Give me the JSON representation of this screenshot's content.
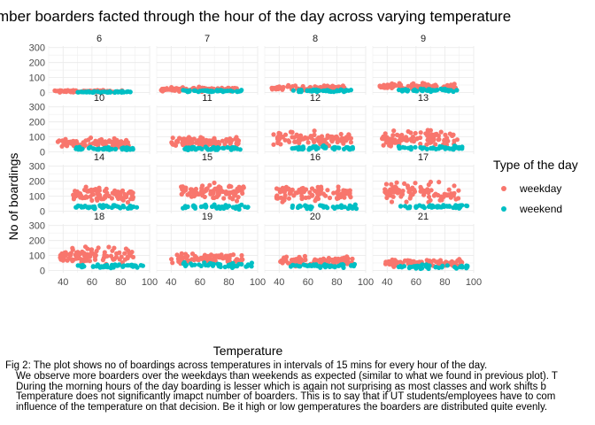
{
  "chart_data": {
    "type": "scatter",
    "title": "mber boarders facted through the hour of the day across varying temperature",
    "xlabel": "Temperature",
    "ylabel": "No of boardings",
    "xlim": [
      30,
      100
    ],
    "ylim": [
      -15,
      310
    ],
    "x_ticks": [
      "40",
      "60",
      "80",
      "100"
    ],
    "y_ticks": [
      "0",
      "100",
      "200",
      "300"
    ],
    "legend": {
      "title": "Type of the day",
      "position": "right",
      "entries": [
        {
          "label": "weekday",
          "color": "#F8766D"
        },
        {
          "label": "weekend",
          "color": "#00BFC4"
        }
      ]
    },
    "grid": true,
    "facets": [
      {
        "hour": "6",
        "weekday": {
          "x_range": [
            33,
            82
          ],
          "y_center": 8,
          "y_spread": 6
        },
        "weekend": {
          "x_range": [
            50,
            88
          ],
          "y_center": 4,
          "y_spread": 4
        }
      },
      {
        "hour": "7",
        "weekday": {
          "x_range": [
            33,
            86
          ],
          "y_center": 22,
          "y_spread": 12
        },
        "weekend": {
          "x_range": [
            48,
            90
          ],
          "y_center": 10,
          "y_spread": 6
        }
      },
      {
        "hour": "8",
        "weekday": {
          "x_range": [
            33,
            86
          ],
          "y_center": 30,
          "y_spread": 15
        },
        "weekend": {
          "x_range": [
            48,
            90
          ],
          "y_center": 12,
          "y_spread": 6
        }
      },
      {
        "hour": "9",
        "weekday": {
          "x_range": [
            34,
            88
          ],
          "y_center": 40,
          "y_spread": 18
        },
        "weekend": {
          "x_range": [
            48,
            90
          ],
          "y_center": 15,
          "y_spread": 8
        }
      },
      {
        "hour": "10",
        "weekday": {
          "x_range": [
            36,
            86
          ],
          "y_center": 55,
          "y_spread": 28
        },
        "weekend": {
          "x_range": [
            48,
            90
          ],
          "y_center": 20,
          "y_spread": 10
        }
      },
      {
        "hour": "11",
        "weekday": {
          "x_range": [
            40,
            88
          ],
          "y_center": 65,
          "y_spread": 30
        },
        "weekend": {
          "x_range": [
            48,
            90
          ],
          "y_center": 22,
          "y_spread": 10
        }
      },
      {
        "hour": "12",
        "weekday": {
          "x_range": [
            36,
            90
          ],
          "y_center": 85,
          "y_spread": 40
        },
        "weekend": {
          "x_range": [
            48,
            92
          ],
          "y_center": 25,
          "y_spread": 12
        }
      },
      {
        "hour": "13",
        "weekday": {
          "x_range": [
            36,
            90
          ],
          "y_center": 90,
          "y_spread": 45
        },
        "weekend": {
          "x_range": [
            48,
            92
          ],
          "y_center": 28,
          "y_spread": 12
        }
      },
      {
        "hour": "14",
        "weekday": {
          "x_range": [
            46,
            90
          ],
          "y_center": 110,
          "y_spread": 45
        },
        "weekend": {
          "x_range": [
            48,
            92
          ],
          "y_center": 28,
          "y_spread": 12
        }
      },
      {
        "hour": "15",
        "weekday": {
          "x_range": [
            46,
            92
          ],
          "y_center": 130,
          "y_spread": 50
        },
        "weekend": {
          "x_range": [
            48,
            94
          ],
          "y_center": 28,
          "y_spread": 12
        }
      },
      {
        "hour": "16",
        "weekday": {
          "x_range": [
            38,
            90
          ],
          "y_center": 120,
          "y_spread": 50
        },
        "weekend": {
          "x_range": [
            48,
            94
          ],
          "y_center": 28,
          "y_spread": 12
        }
      },
      {
        "hour": "17",
        "weekday": {
          "x_range": [
            38,
            90
          ],
          "y_center": 125,
          "y_spread": 55
        },
        "weekend": {
          "x_range": [
            48,
            96
          ],
          "y_center": 30,
          "y_spread": 12
        }
      },
      {
        "hour": "18",
        "weekday": {
          "x_range": [
            38,
            90
          ],
          "y_center": 105,
          "y_spread": 45
        },
        "weekend": {
          "x_range": [
            48,
            96
          ],
          "y_center": 30,
          "y_spread": 12
        }
      },
      {
        "hour": "19",
        "weekday": {
          "x_range": [
            40,
            90
          ],
          "y_center": 80,
          "y_spread": 30
        },
        "weekend": {
          "x_range": [
            48,
            96
          ],
          "y_center": 35,
          "y_spread": 15
        }
      },
      {
        "hour": "20",
        "weekday": {
          "x_range": [
            40,
            92
          ],
          "y_center": 60,
          "y_spread": 25
        },
        "weekend": {
          "x_range": [
            48,
            96
          ],
          "y_center": 30,
          "y_spread": 12
        }
      },
      {
        "hour": "21",
        "weekday": {
          "x_range": [
            38,
            92
          ],
          "y_center": 50,
          "y_spread": 20
        },
        "weekend": {
          "x_range": [
            48,
            96
          ],
          "y_center": 25,
          "y_spread": 12
        }
      }
    ]
  },
  "caption": {
    "line1": "Fig 2: The plot shows no of boardings across temperatures in intervals of 15 mins for every hour of the day.",
    "line2": "We observe more boarders over the weekdays than weekends as expected (similar to what we found in previous plot). T",
    "line3": "During the morning hours of the day boarding is lesser which is again not surprising as most classes and work shifts b",
    "line4": "Temperature does not significantly imapct number of boarders. This is to say that if UT students/employees have to com",
    "line5": "influence of the temperature on that decision. Be it high or low gemperatures the boarders are distributed quite evenly."
  }
}
